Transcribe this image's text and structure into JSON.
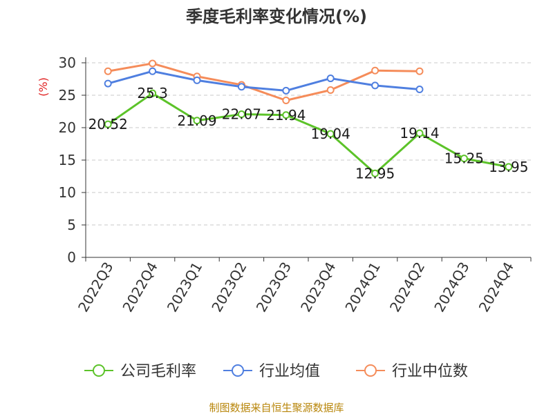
{
  "chart_data": {
    "type": "line",
    "title": "季度毛利率变化情况(%)",
    "ylabel": "(%)",
    "ylim": [
      0,
      30
    ],
    "yticks": [
      0,
      5,
      10,
      15,
      20,
      25,
      30
    ],
    "grid": true,
    "legend_position": "bottom",
    "categories": [
      "2022Q3",
      "2022Q4",
      "2023Q1",
      "2023Q2",
      "2023Q3",
      "2023Q4",
      "2024Q1",
      "2024Q2",
      "2024Q3",
      "2024Q4"
    ],
    "series": [
      {
        "name": "公司毛利率",
        "color": "#5cc329",
        "values": [
          20.52,
          25.3,
          21.09,
          22.07,
          21.94,
          19.04,
          12.95,
          19.14,
          15.25,
          13.95
        ],
        "labels": [
          "20.52",
          "25.3",
          "21.09",
          "22.07",
          "21.94",
          "19.04",
          "12.95",
          "19.14",
          "15.25",
          "13.95"
        ]
      },
      {
        "name": "行业均值",
        "color": "#4f7fe0",
        "values": [
          26.8,
          28.7,
          27.3,
          26.3,
          25.7,
          27.6,
          26.5,
          25.9,
          null,
          null
        ]
      },
      {
        "name": "行业中位数",
        "color": "#f58c5a",
        "values": [
          28.7,
          29.9,
          27.9,
          26.6,
          24.2,
          25.8,
          28.8,
          28.7,
          null,
          null
        ]
      }
    ]
  },
  "source": "制图数据来自恒生聚源数据库"
}
